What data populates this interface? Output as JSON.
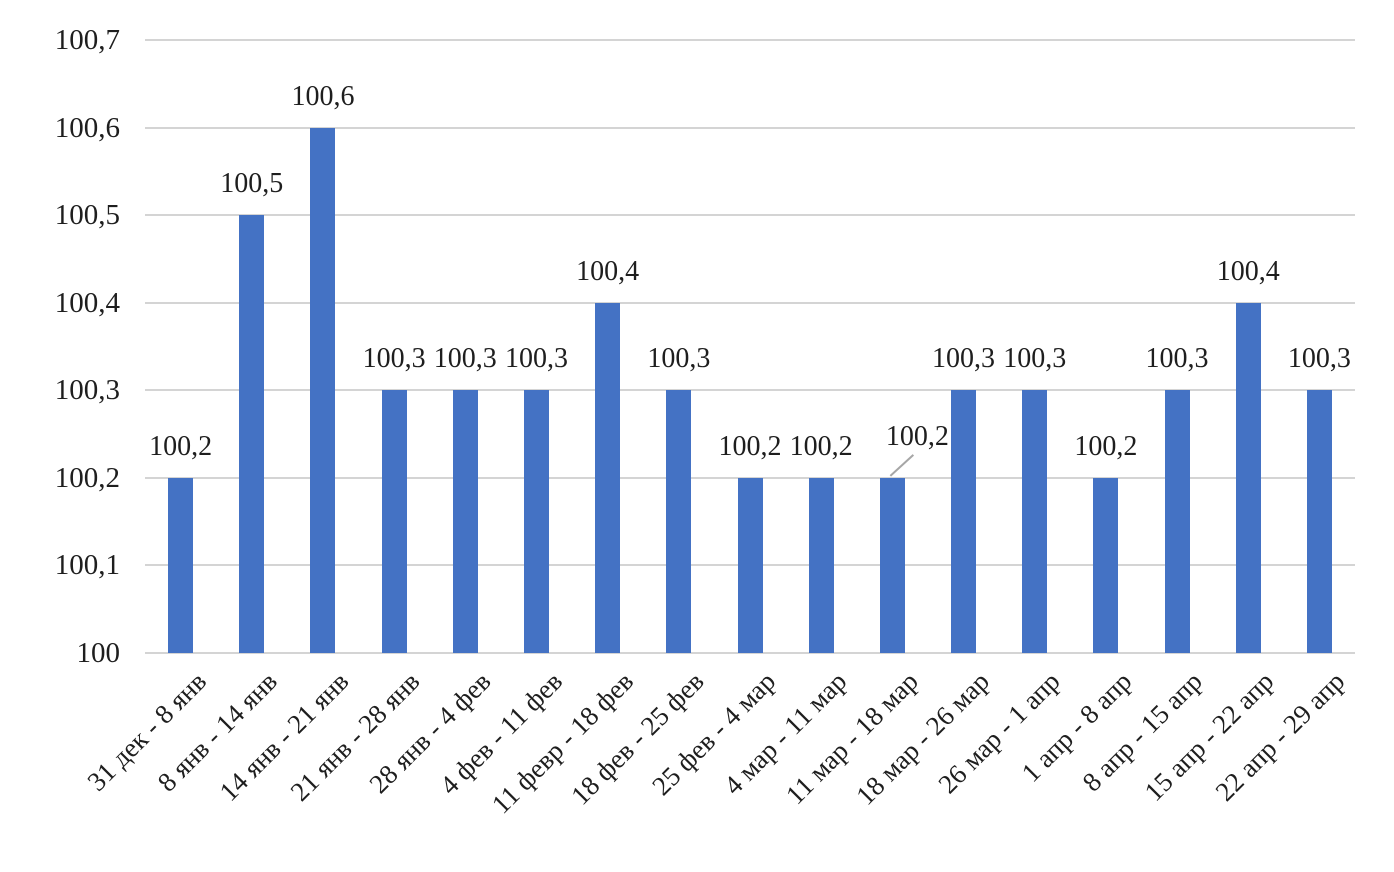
{
  "chart_data": {
    "type": "bar",
    "title": "",
    "xlabel": "",
    "ylabel": "",
    "categories": [
      "31 дек - 8 янв",
      "8 янв - 14 янв",
      "14 янв - 21 янв",
      "21 янв - 28 янв",
      "28 янв - 4 фев",
      "4 фев - 11 фев",
      "11 февр - 18 фев",
      "18 фев - 25 фев",
      "25 фев - 4 мар",
      "4 мар - 11 мар",
      "11 мар - 18 мар",
      "18 мар - 26 мар",
      "26 мар - 1 апр",
      "1 апр - 8 апр",
      "8 апр - 15 апр",
      "15 апр - 22 апр",
      "22 апр - 29 апр"
    ],
    "values": [
      100.2,
      100.5,
      100.6,
      100.3,
      100.3,
      100.3,
      100.4,
      100.3,
      100.2,
      100.2,
      100.2,
      100.3,
      100.3,
      100.2,
      100.3,
      100.4,
      100.3
    ],
    "value_labels": [
      "100,2",
      "100,5",
      "100,6",
      "100,3",
      "100,3",
      "100,3",
      "100,4",
      "100,3",
      "100,2",
      "100,2",
      "100,2",
      "100,3",
      "100,3",
      "100,2",
      "100,3",
      "100,4",
      "100,3"
    ],
    "ylim": [
      100,
      100.7
    ],
    "ytick_values": [
      100.7,
      100.6,
      100.5,
      100.4,
      100.3,
      100.2,
      100.1,
      100
    ],
    "ytick_labels": [
      "100,7",
      "100,6",
      "100,5",
      "100,4",
      "100,3",
      "100,2",
      "100,1",
      "100"
    ],
    "decimal_separator": ",",
    "grid": true,
    "legend": false,
    "callout": {
      "index": 10
    },
    "colors": {
      "bar": "#4472C4",
      "gridline": "#D4D4D4",
      "text": "#1E1E1E",
      "leader": "#A6A6A6",
      "background": "#FFFFFF"
    }
  }
}
